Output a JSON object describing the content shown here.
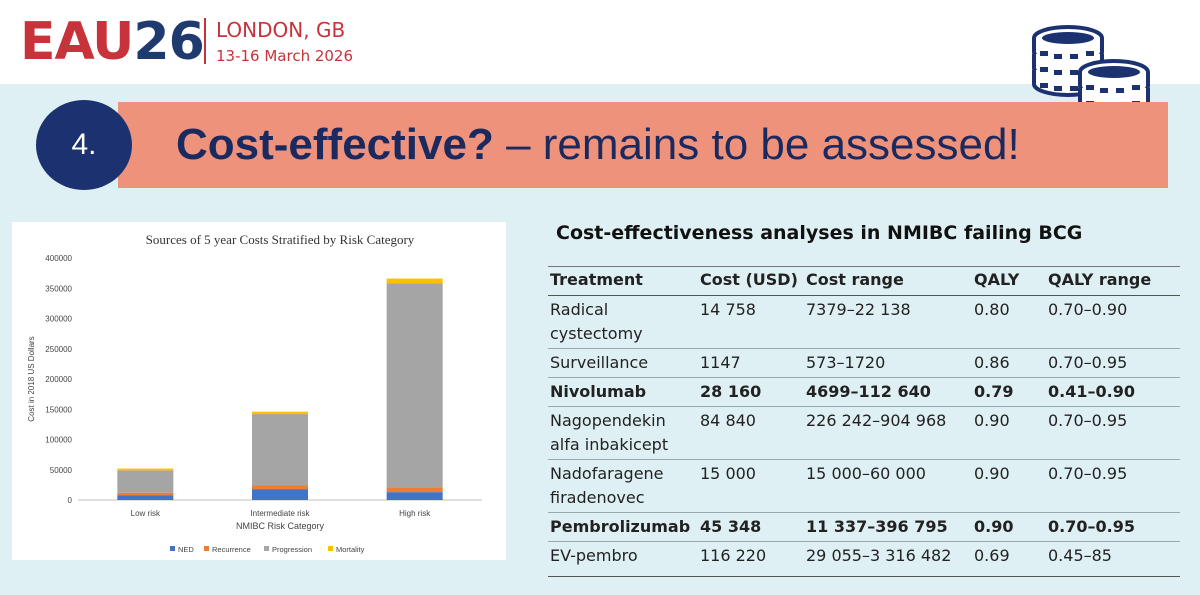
{
  "header": {
    "logo_eau": "EAU",
    "logo_num": "26",
    "city": "LONDON, GB",
    "dates": "13-16 March 2026"
  },
  "banner": {
    "number": "4.",
    "title_bold": "Cost-effective?",
    "title_rest": " – remains to be assessed!"
  },
  "icons": {
    "coins": "coins-stack-icon"
  },
  "colors": {
    "eau_red": "#c8323a",
    "eau_navy": "#1f3a6e",
    "banner": "#ef927c",
    "slide_bg": "#dff0f4",
    "ned": "#4472c4",
    "recurrence": "#ed7d31",
    "progression": "#a5a5a5",
    "mortality": "#ffc000"
  },
  "chart_data": {
    "type": "bar",
    "stacked": true,
    "title": "Sources of 5 year Costs Stratified by Risk Category",
    "xlabel": "NMIBC Risk Category",
    "ylabel": "Cost in 2018 US Dollars",
    "ylim": [
      0,
      400000
    ],
    "yticks": [
      "0",
      "50000",
      "100000",
      "150000",
      "200000",
      "250000",
      "300000",
      "350000",
      "400000"
    ],
    "categories": [
      "Low risk",
      "Intermediate risk",
      "High risk"
    ],
    "series": [
      {
        "name": "NED",
        "color": "#4472c4",
        "values": [
          8000,
          18000,
          13000
        ]
      },
      {
        "name": "Recurrence",
        "color": "#ed7d31",
        "values": [
          4000,
          6000,
          8000
        ]
      },
      {
        "name": "Progression",
        "color": "#a5a5a5",
        "values": [
          37000,
          118000,
          337000
        ]
      },
      {
        "name": "Mortality",
        "color": "#ffc000",
        "values": [
          3000,
          4000,
          8000
        ]
      }
    ],
    "legend_position": "bottom",
    "grid": false
  },
  "table": {
    "title": "Cost-effectiveness analyses in NMIBC failing BCG",
    "headers": [
      "Treatment",
      "Cost (USD)",
      "Cost range",
      "QALY",
      "QALY range"
    ],
    "rows": [
      {
        "bold": false,
        "cells": [
          "Radical cystectomy",
          "14 758",
          "7379–22 138",
          "0.80",
          "0.70–0.90"
        ]
      },
      {
        "bold": false,
        "cells": [
          "Surveillance",
          "1147",
          "573–1720",
          "0.86",
          "0.70–0.95"
        ]
      },
      {
        "bold": true,
        "cells": [
          "Nivolumab",
          "28 160",
          "4699–112 640",
          "0.79",
          "0.41–0.90"
        ]
      },
      {
        "bold": false,
        "cells": [
          "Nagopendekin alfa inbakicept",
          "84 840",
          "226 242–904 968",
          "0.90",
          "0.70–0.95"
        ]
      },
      {
        "bold": false,
        "cells": [
          "Nadofaragene firadenovec",
          "15 000",
          "15 000–60 000",
          "0.90",
          "0.70–0.95"
        ]
      },
      {
        "bold": true,
        "cells": [
          "Pembrolizumab",
          "45 348",
          "11 337–396 795",
          "0.90",
          "0.70–0.95"
        ]
      },
      {
        "bold": false,
        "cells": [
          "EV-pembro",
          "116 220",
          "29 055–3 316 482",
          "0.69",
          "0.45–85"
        ]
      }
    ]
  }
}
